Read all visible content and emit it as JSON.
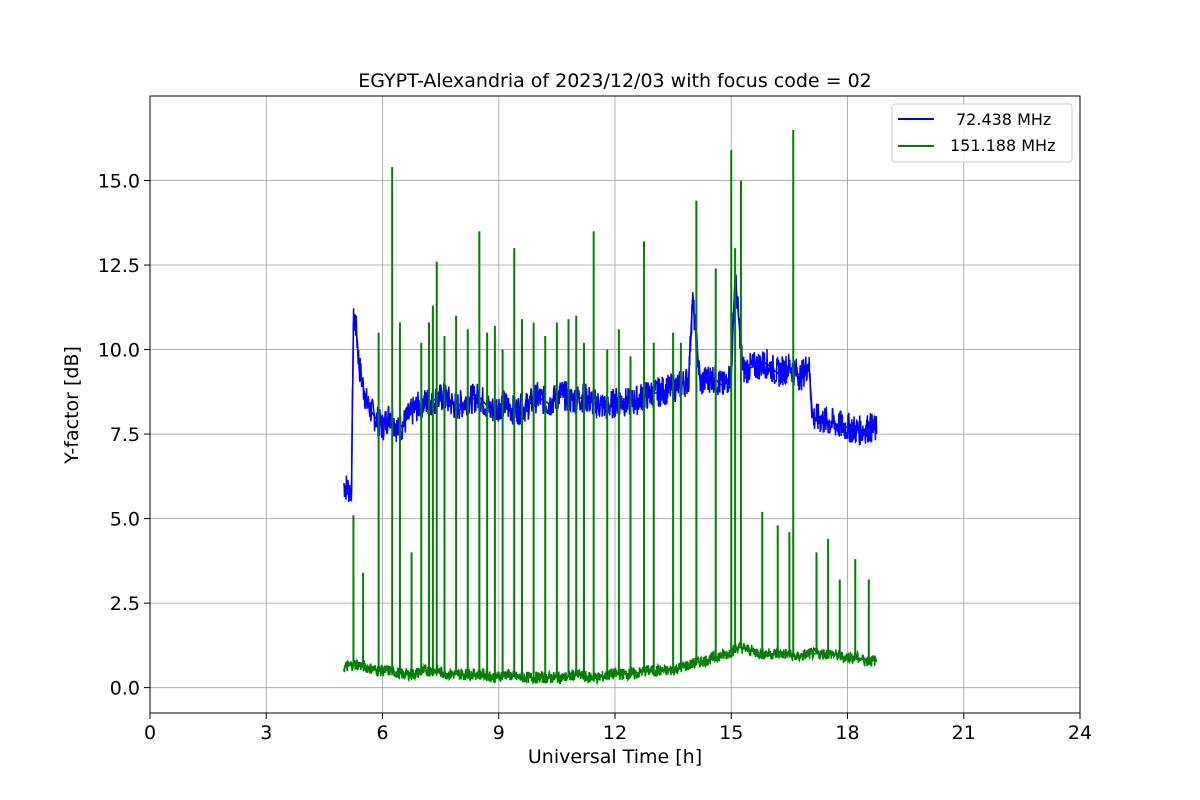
{
  "chart_data": {
    "type": "line",
    "title": "EGYPT-Alexandria of 2023/12/03 with focus code = 02",
    "xlabel": "Universal Time [h]",
    "ylabel": "Y-factor [dB]",
    "xlim": [
      0,
      24
    ],
    "ylim": [
      -0.75,
      17.5
    ],
    "xticks": [
      0,
      3,
      6,
      9,
      12,
      15,
      18,
      21,
      24
    ],
    "yticks": [
      "0.0",
      "2.5",
      "5.0",
      "7.5",
      "10.0",
      "12.5",
      "15.0"
    ],
    "grid": true,
    "legend_position": "top-right",
    "series": [
      {
        "name": "72.438 MHz",
        "color": "#0000ff",
        "x": [
          5.0,
          5.1,
          5.2,
          5.25,
          5.3,
          5.4,
          5.5,
          5.6,
          5.8,
          6.0,
          6.2,
          6.4,
          6.6,
          6.8,
          7.0,
          7.3,
          7.6,
          7.9,
          8.2,
          8.5,
          8.8,
          9.1,
          9.4,
          9.7,
          10.0,
          10.3,
          10.6,
          10.9,
          11.2,
          11.5,
          11.8,
          12.1,
          12.4,
          12.7,
          13.0,
          13.3,
          13.6,
          13.9,
          14.0,
          14.2,
          14.5,
          14.8,
          15.0,
          15.1,
          15.3,
          15.6,
          15.9,
          16.2,
          16.5,
          16.8,
          17.0,
          17.1,
          17.4,
          17.7,
          18.0,
          18.3,
          18.6,
          18.75
        ],
        "y": [
          6.0,
          5.9,
          5.8,
          10.8,
          10.9,
          9.5,
          8.9,
          8.4,
          8.0,
          7.7,
          8.1,
          7.6,
          7.9,
          8.2,
          8.4,
          8.5,
          8.6,
          8.3,
          8.5,
          8.6,
          8.2,
          8.4,
          8.2,
          8.3,
          8.6,
          8.4,
          8.7,
          8.5,
          8.6,
          8.4,
          8.3,
          8.5,
          8.4,
          8.6,
          8.7,
          8.8,
          8.9,
          9.1,
          11.5,
          9.0,
          9.2,
          8.9,
          9.3,
          12.2,
          9.4,
          9.5,
          9.6,
          9.3,
          9.5,
          9.2,
          9.6,
          8.0,
          7.9,
          7.8,
          7.7,
          7.6,
          7.7,
          7.6
        ]
      },
      {
        "name": "151.188 MHz",
        "color": "#008000",
        "x": [
          5.0,
          5.3,
          5.6,
          5.9,
          6.2,
          6.5,
          6.8,
          7.1,
          7.4,
          7.7,
          8.0,
          8.3,
          8.6,
          8.9,
          9.2,
          9.5,
          9.8,
          10.1,
          10.4,
          10.7,
          11.0,
          11.3,
          11.6,
          11.9,
          12.2,
          12.5,
          12.8,
          13.1,
          13.4,
          13.7,
          14.0,
          14.3,
          14.6,
          14.9,
          15.2,
          15.5,
          15.8,
          16.1,
          16.4,
          16.7,
          17.0,
          17.3,
          17.6,
          17.9,
          18.2,
          18.5,
          18.75
        ],
        "y": [
          0.6,
          0.7,
          0.6,
          0.5,
          0.5,
          0.4,
          0.4,
          0.5,
          0.5,
          0.4,
          0.4,
          0.4,
          0.4,
          0.3,
          0.4,
          0.3,
          0.3,
          0.3,
          0.3,
          0.3,
          0.4,
          0.3,
          0.3,
          0.4,
          0.4,
          0.4,
          0.5,
          0.5,
          0.5,
          0.6,
          0.7,
          0.8,
          0.9,
          1.0,
          1.2,
          1.1,
          1.0,
          1.0,
          1.0,
          0.9,
          1.0,
          1.0,
          1.0,
          0.9,
          0.9,
          0.8,
          0.8
        ],
        "spikes": [
          {
            "x": 5.25,
            "y": 5.1
          },
          {
            "x": 5.5,
            "y": 3.4
          },
          {
            "x": 5.9,
            "y": 10.5
          },
          {
            "x": 6.25,
            "y": 15.4
          },
          {
            "x": 6.45,
            "y": 10.8
          },
          {
            "x": 6.75,
            "y": 4.0
          },
          {
            "x": 7.0,
            "y": 10.2
          },
          {
            "x": 7.2,
            "y": 10.8
          },
          {
            "x": 7.3,
            "y": 11.3
          },
          {
            "x": 7.4,
            "y": 12.6
          },
          {
            "x": 7.6,
            "y": 10.4
          },
          {
            "x": 7.9,
            "y": 11.0
          },
          {
            "x": 8.2,
            "y": 10.6
          },
          {
            "x": 8.5,
            "y": 13.5
          },
          {
            "x": 8.7,
            "y": 10.5
          },
          {
            "x": 8.9,
            "y": 10.7
          },
          {
            "x": 9.1,
            "y": 10.0
          },
          {
            "x": 9.4,
            "y": 13.0
          },
          {
            "x": 9.6,
            "y": 10.9
          },
          {
            "x": 9.9,
            "y": 10.8
          },
          {
            "x": 10.2,
            "y": 10.4
          },
          {
            "x": 10.5,
            "y": 10.8
          },
          {
            "x": 10.8,
            "y": 10.9
          },
          {
            "x": 11.0,
            "y": 11.0
          },
          {
            "x": 11.2,
            "y": 10.2
          },
          {
            "x": 11.45,
            "y": 13.5
          },
          {
            "x": 11.8,
            "y": 10.0
          },
          {
            "x": 12.1,
            "y": 10.6
          },
          {
            "x": 12.4,
            "y": 9.8
          },
          {
            "x": 12.75,
            "y": 13.2
          },
          {
            "x": 13.0,
            "y": 10.2
          },
          {
            "x": 13.5,
            "y": 10.5
          },
          {
            "x": 13.7,
            "y": 10.2
          },
          {
            "x": 14.1,
            "y": 14.4
          },
          {
            "x": 14.6,
            "y": 12.4
          },
          {
            "x": 15.0,
            "y": 15.9
          },
          {
            "x": 15.1,
            "y": 13.0
          },
          {
            "x": 15.25,
            "y": 15.0
          },
          {
            "x": 15.8,
            "y": 5.2
          },
          {
            "x": 16.2,
            "y": 4.8
          },
          {
            "x": 16.5,
            "y": 4.6
          },
          {
            "x": 16.6,
            "y": 16.5
          },
          {
            "x": 17.2,
            "y": 4.0
          },
          {
            "x": 17.5,
            "y": 4.4
          },
          {
            "x": 17.8,
            "y": 3.2
          },
          {
            "x": 18.2,
            "y": 3.8
          },
          {
            "x": 18.55,
            "y": 3.2
          }
        ]
      }
    ]
  }
}
